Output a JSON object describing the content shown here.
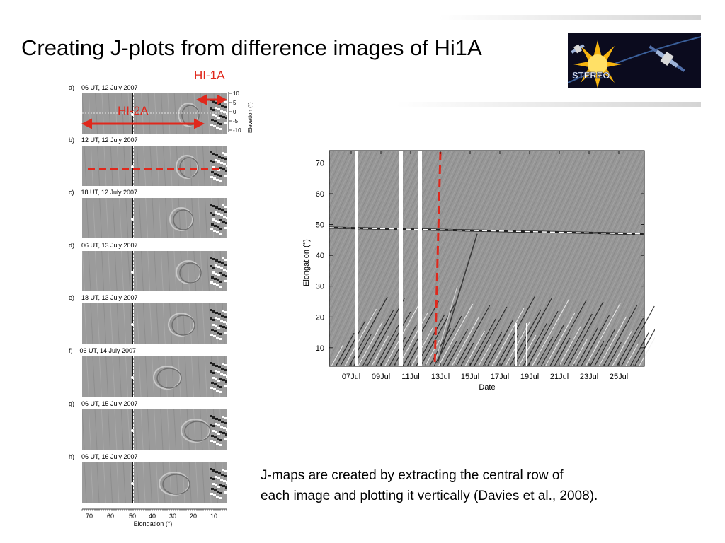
{
  "slide": {
    "title": "Creating J-plots from difference images of Hi1A",
    "caption_line1": "J-maps are created by extracting the central row of",
    "caption_line2": "each image and plotting it vertically (Davies et al., 2008).",
    "logo_text": "STEREO"
  },
  "annotations": {
    "hi1a": "HI-1A",
    "hi2a": "HI-2A"
  },
  "panels": [
    {
      "letter": "a)",
      "time": "06 UT, 12 July 2007"
    },
    {
      "letter": "b)",
      "time": "12 UT, 12 July 2007"
    },
    {
      "letter": "c)",
      "time": "18 UT, 12 July 2007"
    },
    {
      "letter": "d)",
      "time": "06 UT, 13 July 2007"
    },
    {
      "letter": "e)",
      "time": "18 UT, 13 July 2007"
    },
    {
      "letter": "f)",
      "time": "06 UT, 14 July 2007"
    },
    {
      "letter": "g)",
      "time": "06 UT, 15 July 2007"
    },
    {
      "letter": "h)",
      "time": "06 UT, 16 July 2007"
    }
  ],
  "panel_axes": {
    "elevation_label": "Elevation (°)",
    "elevation_ticks": [
      "10",
      "5",
      "0",
      "-5",
      "-10"
    ],
    "elongation_label": "Elongation (°)",
    "elongation_ticks": [
      "70",
      "60",
      "50",
      "40",
      "30",
      "20",
      "10"
    ]
  },
  "chart_data": {
    "type": "heatmap",
    "xlabel": "Date",
    "ylabel": "Elongation (°)",
    "x_ticks": [
      "07Jul",
      "09Jul",
      "11Jul",
      "13Jul",
      "15Jul",
      "17Jul",
      "19Jul",
      "21Jul",
      "23Jul",
      "25Jul"
    ],
    "y_ticks": [
      10,
      20,
      30,
      40,
      50,
      60,
      70
    ],
    "ylim": [
      4,
      74
    ],
    "bright_band_elongation": 49,
    "marker_date": "13Jul",
    "colors": {
      "annotation": "#e0281c",
      "background": "#9a9a9a"
    }
  }
}
